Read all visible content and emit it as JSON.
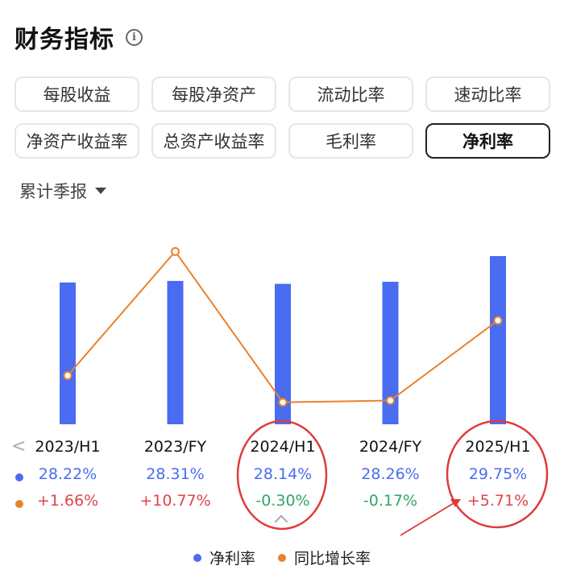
{
  "header": {
    "title": "财务指标",
    "info_icon": "info-icon"
  },
  "tabs": [
    {
      "label": "每股收益",
      "active": false
    },
    {
      "label": "每股净资产",
      "active": false
    },
    {
      "label": "流动比率",
      "active": false
    },
    {
      "label": "速动比率",
      "active": false
    },
    {
      "label": "净资产收益率",
      "active": false
    },
    {
      "label": "总资产收益率",
      "active": false
    },
    {
      "label": "毛利率",
      "active": false
    },
    {
      "label": "净利率",
      "active": true
    }
  ],
  "period_selector": {
    "label": "累计季报",
    "icon": "caret-down-icon"
  },
  "colors": {
    "bar": "#4a6cf0",
    "line": "#e8822e",
    "positive": "#e0434a",
    "negative": "#2ea66a",
    "annotation": "#e03a3a"
  },
  "chart_data": {
    "type": "bar",
    "categories": [
      "2023/H1",
      "2023/FY",
      "2024/H1",
      "2024/FY",
      "2025/H1"
    ],
    "series": [
      {
        "name": "净利率",
        "type": "bar",
        "values": [
          28.22,
          28.31,
          28.14,
          28.26,
          29.75
        ],
        "labels": [
          "28.22%",
          "28.31%",
          "28.14%",
          "28.26%",
          "29.75%"
        ]
      },
      {
        "name": "同比增长率",
        "type": "line",
        "values": [
          1.66,
          10.77,
          -0.3,
          -0.17,
          5.71
        ],
        "labels": [
          "+1.66%",
          "+10.77%",
          "-0.30%",
          "-0.17%",
          "+5.71%"
        ]
      }
    ],
    "legend_position": "bottom",
    "grid": false
  }
}
